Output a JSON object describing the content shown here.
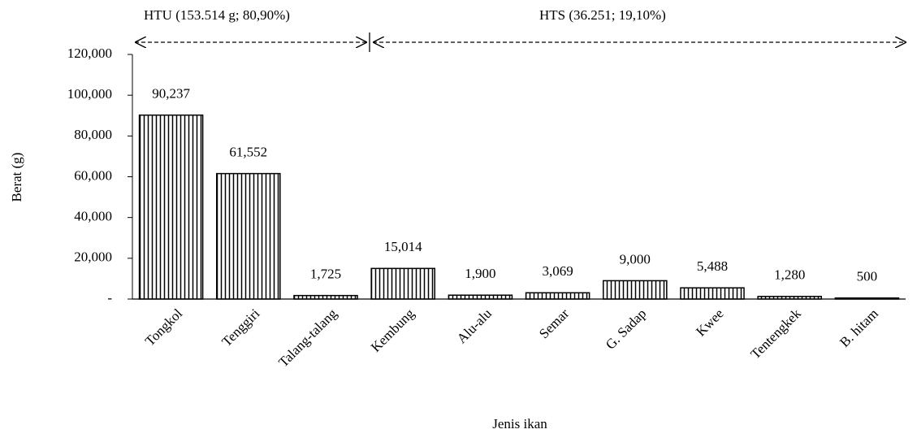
{
  "chart_data": {
    "type": "bar",
    "annotations": [
      "HTU (153.514  g; 80,90%)",
      "HTS (36.251;  19,10%)"
    ],
    "x_label": "Jenis ikan",
    "y_label": "Berat (g)",
    "categories": [
      "Tongkol",
      "Tenggiri",
      "Talang-talang",
      "Kembung",
      "Alu-alu",
      "Semar",
      "G. Sadap",
      "Kwee",
      "Tentengkek",
      "B. hitam"
    ],
    "values": [
      90237,
      61552,
      1725,
      15014,
      1900,
      3069,
      9000,
      5488,
      1280,
      500
    ],
    "value_labels": [
      "90,237",
      "61,552",
      "1,725",
      "15,014",
      "1,900",
      "3,069",
      "9,000",
      "5,488",
      "1,280",
      "500"
    ],
    "color": "#000000",
    "ylim": [
      0,
      120000
    ],
    "yticks": [
      {
        "value": 0,
        "label": "-"
      },
      {
        "value": 20000,
        "label": "20,000"
      },
      {
        "value": 40000,
        "label": "40,000"
      },
      {
        "value": 60000,
        "label": "60,000"
      },
      {
        "value": 80000,
        "label": "80,000"
      },
      {
        "value": 100000,
        "label": "100,000"
      },
      {
        "value": 120000,
        "label": "120,000"
      }
    ]
  }
}
